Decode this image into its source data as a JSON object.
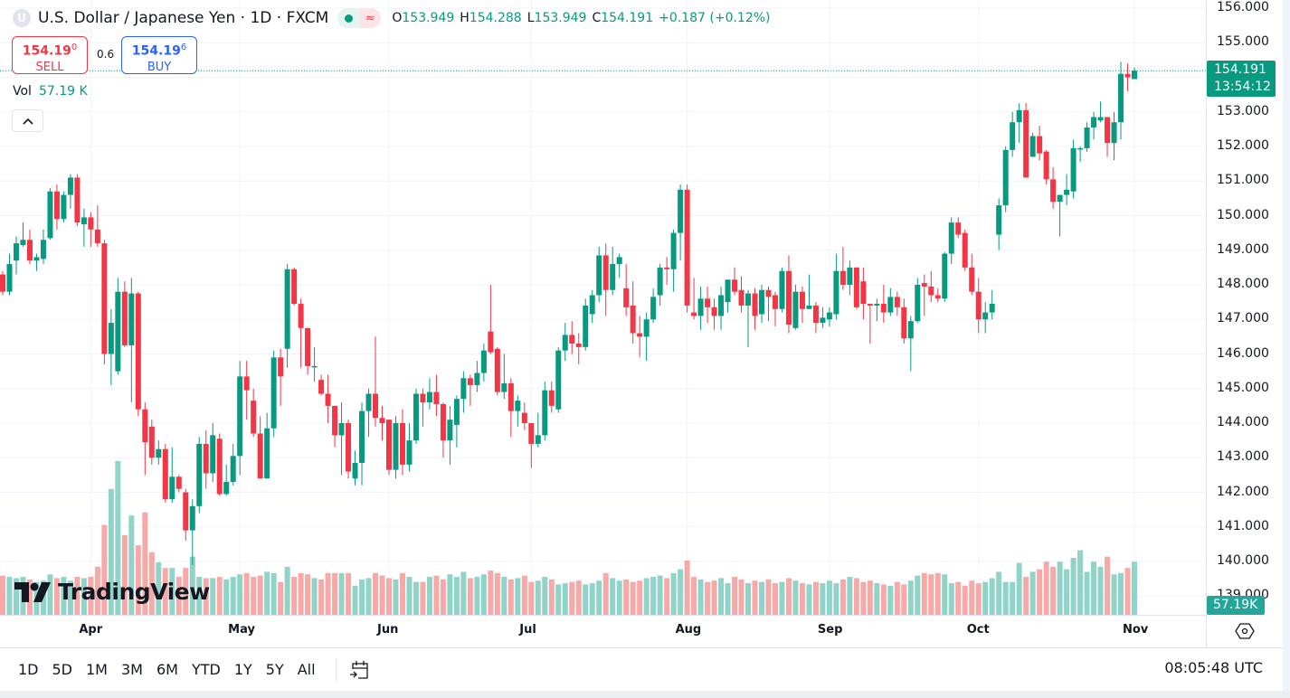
{
  "header": {
    "symbol_icon_letter": "U",
    "title": "U.S. Dollar / Japanese Yen · 1D · FXCM",
    "market_status": "open",
    "ohlc": {
      "o_label": "O",
      "o": "153.949",
      "h_label": "H",
      "h": "154.288",
      "l_label": "L",
      "l": "153.949",
      "c_label": "C",
      "c": "154.191",
      "change": "+0.187 (+0.12%)"
    }
  },
  "trade": {
    "sell_price": "154.19",
    "sell_sup": "0",
    "sell_label": "SELL",
    "spread": "0.6",
    "buy_price": "154.19",
    "buy_sup": "6",
    "buy_label": "BUY"
  },
  "volume_legend": {
    "label": "Vol",
    "value": "57.19 K"
  },
  "brand": "TradingView",
  "price_axis": {
    "last_price": "154.191",
    "countdown": "13:54:12",
    "volume_badge": "57.19K"
  },
  "ranges": [
    "1D",
    "5D",
    "1M",
    "3M",
    "6M",
    "YTD",
    "1Y",
    "5Y",
    "All"
  ],
  "clock": "08:05:48 UTC",
  "colors": {
    "up": "#089981",
    "down": "#f23645",
    "vol_up": "#8fd3c9",
    "vol_down": "#f7a9a7"
  },
  "chart_data": {
    "type": "candlestick",
    "title": "U.S. Dollar / Japanese Yen · 1D · FXCM",
    "ylim": [
      138.5,
      156.2
    ],
    "y_ticks": [
      "156.000",
      "155.000",
      "154.000",
      "153.000",
      "152.000",
      "151.000",
      "150.000",
      "149.000",
      "148.000",
      "147.000",
      "146.000",
      "145.000",
      "144.000",
      "143.000",
      "142.000",
      "141.000",
      "140.000",
      "139.000"
    ],
    "y_tick_values": [
      156,
      155,
      154,
      153,
      152,
      151,
      150,
      149,
      148,
      147,
      146,
      145,
      144,
      143,
      142,
      141,
      140,
      139
    ],
    "x_ticks": [
      {
        "label": "Apr",
        "bar": 13
      },
      {
        "label": "May",
        "bar": 35
      },
      {
        "label": "Jun",
        "bar": 57
      },
      {
        "label": "Jul",
        "bar": 78
      },
      {
        "label": "Aug",
        "bar": 101
      },
      {
        "label": "Sep",
        "bar": 122
      },
      {
        "label": "Oct",
        "bar": 144
      },
      {
        "label": "Nov",
        "bar": 167
      }
    ],
    "grid": true,
    "ohlc_fields": [
      "open",
      "high",
      "low",
      "close"
    ],
    "ohlc": [
      [
        148.3,
        148.4,
        147.7,
        147.8
      ],
      [
        147.8,
        148.9,
        147.7,
        148.6
      ],
      [
        148.7,
        149.4,
        148.3,
        149.2
      ],
      [
        149.15,
        149.8,
        149.1,
        149.3
      ],
      [
        149.3,
        149.6,
        148.6,
        148.7
      ],
      [
        148.7,
        148.9,
        148.4,
        148.8
      ],
      [
        148.75,
        149.6,
        148.6,
        149.3
      ],
      [
        149.35,
        150.8,
        149.3,
        150.7
      ],
      [
        150.7,
        150.9,
        149.6,
        149.9
      ],
      [
        149.9,
        150.7,
        149.8,
        150.6
      ],
      [
        150.6,
        151.2,
        150.2,
        151.1
      ],
      [
        151.1,
        151.2,
        149.7,
        149.8
      ],
      [
        149.75,
        150.2,
        149.1,
        149.95
      ],
      [
        149.95,
        150.1,
        149.1,
        149.6
      ],
      [
        149.6,
        150.3,
        149.1,
        149.2
      ],
      [
        149.2,
        149.3,
        145.7,
        146.0
      ],
      [
        146.0,
        147.3,
        145.1,
        146.9
      ],
      [
        145.5,
        148.2,
        145.4,
        147.8
      ],
      [
        147.8,
        148.1,
        146.2,
        146.25
      ],
      [
        146.25,
        148.2,
        144.6,
        147.75
      ],
      [
        147.75,
        147.8,
        144.2,
        144.4
      ],
      [
        144.4,
        144.6,
        142.5,
        143.45
      ],
      [
        143.9,
        144.1,
        142.8,
        143.0
      ],
      [
        143.0,
        143.5,
        142.8,
        143.25
      ],
      [
        143.25,
        143.4,
        141.7,
        141.8
      ],
      [
        141.8,
        143.3,
        141.7,
        142.45
      ],
      [
        142.45,
        142.5,
        142.0,
        142.1
      ],
      [
        142.0,
        142.1,
        140.6,
        140.9
      ],
      [
        140.9,
        141.8,
        139.9,
        141.6
      ],
      [
        141.6,
        143.6,
        141.4,
        143.4
      ],
      [
        143.4,
        143.8,
        142.1,
        142.55
      ],
      [
        142.55,
        144.0,
        142.3,
        143.65
      ],
      [
        143.55,
        143.7,
        141.9,
        141.95
      ],
      [
        141.95,
        142.8,
        141.9,
        142.3
      ],
      [
        142.3,
        143.4,
        142.2,
        143.05
      ],
      [
        143.05,
        145.8,
        142.5,
        145.35
      ],
      [
        145.35,
        145.8,
        144.1,
        144.95
      ],
      [
        144.65,
        145.0,
        143.6,
        143.7
      ],
      [
        143.7,
        144.2,
        142.4,
        142.4
      ],
      [
        142.4,
        144.3,
        142.4,
        143.85
      ],
      [
        143.85,
        146.1,
        143.6,
        145.9
      ],
      [
        145.9,
        146.15,
        144.5,
        145.35
      ],
      [
        146.15,
        148.6,
        145.6,
        148.45
      ],
      [
        148.45,
        148.5,
        147.4,
        147.45
      ],
      [
        147.45,
        147.6,
        145.6,
        146.75
      ],
      [
        146.75,
        146.75,
        145.4,
        145.65
      ],
      [
        145.65,
        146.2,
        145.2,
        145.65
      ],
      [
        145.25,
        145.4,
        144.8,
        144.85
      ],
      [
        144.85,
        145.4,
        144.0,
        144.5
      ],
      [
        144.5,
        144.5,
        143.3,
        143.65
      ],
      [
        143.65,
        144.6,
        142.5,
        144.0
      ],
      [
        144.0,
        144.1,
        142.4,
        142.6
      ],
      [
        142.4,
        143.2,
        142.2,
        142.85
      ],
      [
        142.85,
        144.6,
        142.2,
        144.35
      ],
      [
        144.35,
        145.0,
        143.6,
        144.85
      ],
      [
        144.85,
        146.5,
        143.9,
        144.15
      ],
      [
        144.15,
        144.5,
        143.5,
        144.0
      ],
      [
        144.1,
        144.1,
        142.5,
        142.65
      ],
      [
        142.65,
        144.2,
        142.4,
        144.0
      ],
      [
        144.0,
        144.4,
        142.5,
        142.8
      ],
      [
        142.8,
        144.0,
        142.6,
        143.5
      ],
      [
        143.5,
        145.0,
        143.4,
        144.85
      ],
      [
        144.85,
        145.0,
        143.9,
        144.6
      ],
      [
        144.6,
        145.3,
        144.4,
        144.9
      ],
      [
        144.9,
        145.4,
        144.2,
        144.55
      ],
      [
        144.55,
        144.6,
        143.0,
        143.5
      ],
      [
        143.5,
        144.5,
        142.8,
        144.1
      ],
      [
        143.95,
        144.8,
        143.3,
        144.7
      ],
      [
        144.7,
        145.5,
        144.3,
        145.3
      ],
      [
        145.3,
        145.4,
        144.5,
        145.1
      ],
      [
        145.1,
        145.8,
        144.9,
        145.45
      ],
      [
        145.45,
        146.3,
        145.2,
        146.1
      ],
      [
        146.65,
        148.0,
        146.0,
        146.05
      ],
      [
        146.15,
        146.2,
        144.8,
        144.9
      ],
      [
        144.9,
        146.0,
        144.7,
        145.15
      ],
      [
        145.15,
        145.3,
        143.6,
        144.35
      ],
      [
        144.35,
        144.8,
        143.9,
        144.65
      ],
      [
        144.3,
        144.6,
        143.8,
        144.0
      ],
      [
        144.0,
        144.0,
        142.7,
        143.4
      ],
      [
        143.4,
        144.3,
        143.3,
        143.65
      ],
      [
        143.65,
        145.2,
        143.5,
        144.95
      ],
      [
        144.95,
        145.2,
        144.3,
        144.5
      ],
      [
        144.4,
        146.2,
        144.3,
        146.1
      ],
      [
        146.1,
        146.9,
        145.8,
        146.55
      ],
      [
        146.55,
        146.95,
        146.0,
        146.3
      ],
      [
        146.3,
        146.6,
        145.7,
        146.2
      ],
      [
        146.2,
        147.6,
        146.1,
        147.4
      ],
      [
        147.15,
        147.85,
        146.9,
        147.7
      ],
      [
        147.7,
        149.1,
        147.5,
        148.85
      ],
      [
        148.85,
        149.2,
        147.1,
        147.85
      ],
      [
        147.85,
        149.1,
        147.7,
        148.6
      ],
      [
        148.6,
        148.9,
        148.2,
        148.8
      ],
      [
        147.9,
        148.6,
        147.1,
        147.35
      ],
      [
        147.4,
        148.1,
        146.3,
        146.6
      ],
      [
        146.6,
        147.1,
        145.9,
        146.5
      ],
      [
        146.5,
        147.2,
        145.8,
        147.0
      ],
      [
        147.0,
        147.9,
        146.9,
        147.65
      ],
      [
        147.7,
        148.6,
        147.4,
        148.5
      ],
      [
        148.5,
        148.8,
        148.0,
        148.45
      ],
      [
        148.45,
        149.6,
        147.8,
        149.5
      ],
      [
        149.5,
        150.9,
        148.7,
        150.75
      ],
      [
        150.75,
        150.9,
        147.2,
        147.4
      ],
      [
        147.2,
        148.2,
        147.0,
        147.1
      ],
      [
        147.1,
        147.95,
        146.7,
        147.6
      ],
      [
        147.6,
        147.95,
        146.9,
        147.35
      ],
      [
        147.35,
        147.6,
        146.7,
        147.1
      ],
      [
        147.1,
        147.95,
        146.7,
        147.7
      ],
      [
        147.5,
        148.15,
        147.2,
        148.15
      ],
      [
        148.15,
        148.5,
        147.7,
        147.8
      ],
      [
        147.85,
        148.25,
        147.2,
        147.4
      ],
      [
        147.4,
        147.85,
        146.2,
        147.75
      ],
      [
        147.75,
        147.9,
        146.7,
        147.1
      ],
      [
        147.15,
        148.0,
        146.9,
        147.85
      ],
      [
        147.85,
        147.95,
        146.95,
        147.65
      ],
      [
        147.7,
        147.8,
        146.8,
        147.3
      ],
      [
        147.3,
        148.5,
        147.2,
        148.4
      ],
      [
        148.4,
        148.85,
        146.6,
        146.85
      ],
      [
        146.75,
        148.0,
        146.7,
        147.8
      ],
      [
        147.8,
        147.95,
        146.9,
        147.3
      ],
      [
        147.3,
        148.3,
        147.3,
        147.4
      ],
      [
        147.4,
        147.5,
        146.6,
        146.9
      ],
      [
        146.9,
        147.35,
        146.75,
        147.05
      ],
      [
        147.0,
        147.35,
        146.8,
        147.2
      ],
      [
        147.15,
        148.9,
        147.0,
        148.4
      ],
      [
        148.4,
        149.1,
        147.85,
        148.0
      ],
      [
        148.0,
        148.7,
        147.7,
        148.5
      ],
      [
        148.5,
        148.5,
        147.3,
        147.35
      ],
      [
        148.1,
        148.5,
        147.0,
        147.45
      ],
      [
        147.45,
        147.45,
        146.3,
        147.4
      ],
      [
        147.4,
        147.6,
        146.95,
        147.45
      ],
      [
        147.45,
        148.0,
        146.9,
        147.2
      ],
      [
        147.2,
        147.9,
        147.1,
        147.65
      ],
      [
        147.65,
        147.8,
        147.1,
        147.35
      ],
      [
        147.35,
        147.6,
        146.3,
        146.45
      ],
      [
        146.45,
        147.1,
        145.5,
        146.95
      ],
      [
        146.95,
        148.2,
        146.9,
        148.0
      ],
      [
        148.05,
        148.3,
        147.1,
        147.95
      ],
      [
        147.95,
        148.4,
        147.5,
        147.7
      ],
      [
        147.7,
        147.9,
        147.5,
        147.6
      ],
      [
        147.6,
        148.95,
        147.5,
        148.9
      ],
      [
        148.9,
        149.95,
        148.6,
        149.8
      ],
      [
        149.8,
        149.95,
        149.35,
        149.45
      ],
      [
        149.5,
        149.6,
        148.4,
        148.5
      ],
      [
        148.5,
        148.9,
        147.7,
        147.8
      ],
      [
        147.8,
        148.2,
        146.6,
        147.0
      ],
      [
        147.0,
        147.5,
        146.6,
        147.2
      ],
      [
        147.2,
        147.85,
        147.0,
        147.45
      ],
      [
        149.45,
        150.5,
        149.0,
        150.3
      ],
      [
        150.3,
        152.0,
        150.1,
        151.9
      ],
      [
        151.9,
        153.0,
        151.7,
        152.7
      ],
      [
        152.7,
        153.25,
        152.1,
        153.05
      ],
      [
        153.05,
        153.25,
        151.1,
        151.1
      ],
      [
        151.7,
        152.4,
        151.7,
        152.3
      ],
      [
        152.3,
        152.6,
        151.6,
        151.8
      ],
      [
        151.85,
        151.9,
        150.9,
        151.05
      ],
      [
        151.05,
        151.4,
        150.2,
        150.4
      ],
      [
        150.4,
        150.6,
        149.4,
        150.6
      ],
      [
        150.6,
        151.2,
        150.3,
        150.75
      ],
      [
        150.7,
        152.2,
        150.5,
        151.95
      ],
      [
        151.95,
        152.0,
        151.55,
        151.95
      ],
      [
        151.95,
        152.7,
        151.85,
        152.55
      ],
      [
        152.55,
        153.0,
        152.2,
        152.85
      ],
      [
        152.75,
        153.3,
        152.7,
        152.85
      ],
      [
        152.85,
        152.85,
        151.7,
        152.1
      ],
      [
        152.1,
        153.0,
        151.6,
        152.7
      ],
      [
        152.7,
        154.45,
        152.2,
        154.1
      ],
      [
        154.1,
        154.4,
        153.6,
        154.0
      ],
      [
        153.949,
        154.288,
        153.949,
        154.191
      ]
    ],
    "volume_unit": "K",
    "volume": [
      310,
      300,
      290,
      300,
      280,
      260,
      270,
      320,
      290,
      300,
      270,
      300,
      290,
      300,
      380,
      710,
      995,
      1215,
      630,
      785,
      550,
      810,
      495,
      415,
      370,
      370,
      300,
      370,
      460,
      300,
      290,
      290,
      300,
      280,
      300,
      320,
      330,
      300,
      310,
      340,
      330,
      260,
      380,
      300,
      330,
      320,
      290,
      280,
      330,
      330,
      330,
      330,
      230,
      280,
      290,
      330,
      310,
      290,
      280,
      330,
      300,
      260,
      260,
      300,
      310,
      280,
      320,
      300,
      340,
      290,
      300,
      320,
      350,
      330,
      300,
      280,
      290,
      310,
      260,
      270,
      300,
      280,
      240,
      250,
      260,
      270,
      240,
      250,
      270,
      330,
      290,
      270,
      280,
      260,
      270,
      290,
      300,
      310,
      290,
      330,
      360,
      430,
      300,
      280,
      260,
      270,
      290,
      250,
      300,
      280,
      250,
      270,
      260,
      280,
      250,
      260,
      290,
      270,
      250,
      240,
      260,
      250,
      270,
      250,
      280,
      300,
      290,
      260,
      270,
      250,
      240,
      230,
      260,
      240,
      270,
      310,
      330,
      320,
      330,
      320,
      250,
      260,
      230,
      270,
      250,
      260,
      290,
      340,
      260,
      260,
      410,
      300,
      340,
      360,
      420,
      380,
      420,
      360,
      450,
      510,
      340,
      420,
      380,
      460,
      320,
      330,
      370,
      420,
      440,
      300,
      57.19
    ],
    "last_price": 154.191
  }
}
